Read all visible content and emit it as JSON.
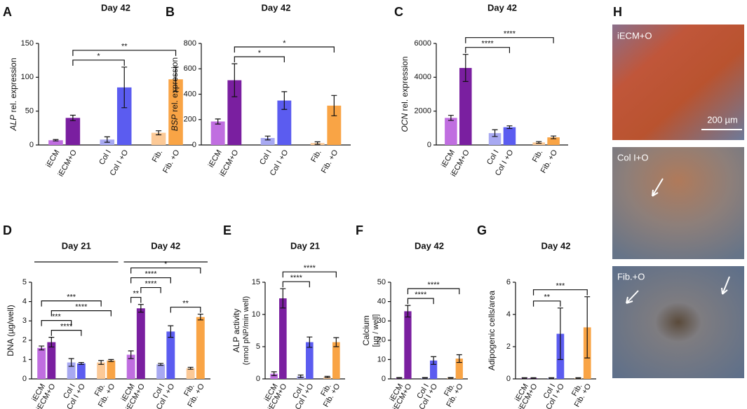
{
  "chart_data": [
    {
      "panel": "A",
      "type": "bar",
      "title": "Day 42",
      "ylabel_gene": "ALP",
      "ylabel": "rel. expression",
      "categories": [
        "iECM",
        "iECM+O",
        "Col I",
        "Col I +O",
        "Fib.",
        "Fib. +O"
      ],
      "colors": [
        "#c06ee0",
        "#7a1fa0",
        "#a8a9f2",
        "#5b5cf0",
        "#fcc996",
        "#f9a445"
      ],
      "values": [
        7,
        40,
        8,
        85,
        18,
        97
      ],
      "errors": [
        1,
        4,
        4,
        30,
        3,
        18
      ],
      "ylim": [
        0,
        150
      ],
      "yticks": [
        0,
        50,
        100,
        150
      ],
      "comparisons": [
        {
          "between": [
            "iECM+O",
            "Col I +O"
          ],
          "label": "*"
        },
        {
          "between": [
            "iECM+O",
            "Fib. +O"
          ],
          "label": "**"
        }
      ]
    },
    {
      "panel": "B",
      "type": "bar",
      "title": "Day 42",
      "ylabel_gene": "BSP",
      "ylabel": "rel. expression",
      "categories": [
        "iECM",
        "iECM+O",
        "Col I",
        "Col I +O",
        "Fib.",
        "Fib. +O"
      ],
      "colors": [
        "#c06ee0",
        "#7a1fa0",
        "#a8a9f2",
        "#5b5cf0",
        "#fcc996",
        "#f9a445"
      ],
      "values": [
        185,
        510,
        55,
        350,
        15,
        310
      ],
      "errors": [
        20,
        130,
        15,
        70,
        10,
        80
      ],
      "ylim": [
        0,
        800
      ],
      "yticks": [
        0,
        200,
        400,
        600,
        800
      ],
      "comparisons": [
        {
          "between": [
            "iECM+O",
            "Col I +O"
          ],
          "label": "*"
        },
        {
          "between": [
            "iECM+O",
            "Fib. +O"
          ],
          "label": "*"
        }
      ]
    },
    {
      "panel": "C",
      "type": "bar",
      "title": "Day 42",
      "ylabel_gene": "OCN",
      "ylabel": "rel. expression",
      "categories": [
        "iECM",
        "iECM+O",
        "Col I",
        "Col I +O",
        "Fib.",
        "Fib. +O"
      ],
      "colors": [
        "#c06ee0",
        "#7a1fa0",
        "#a8a9f2",
        "#5b5cf0",
        "#fcc996",
        "#f9a445"
      ],
      "values": [
        1600,
        4550,
        700,
        1050,
        150,
        450
      ],
      "errors": [
        150,
        800,
        200,
        80,
        50,
        80
      ],
      "ylim": [
        0,
        6000
      ],
      "yticks": [
        0,
        2000,
        4000,
        6000
      ],
      "comparisons": [
        {
          "between": [
            "iECM+O",
            "Col I +O"
          ],
          "label": "****"
        },
        {
          "between": [
            "iECM+O",
            "Fib. +O"
          ],
          "label": "****"
        }
      ]
    },
    {
      "panel": "D",
      "type": "grouped-bar",
      "ylabel": "DNA (µg/well)",
      "categories": [
        "iECM",
        "iECM+O",
        "Col I",
        "Col I +O",
        "Fib.",
        "Fib. +O"
      ],
      "colors": [
        "#c06ee0",
        "#7a1fa0",
        "#a8a9f2",
        "#5b5cf0",
        "#fcc996",
        "#f9a445"
      ],
      "groups": [
        {
          "title": "Day 21",
          "values": [
            1.6,
            1.9,
            0.85,
            0.8,
            0.85,
            0.95
          ],
          "errors": [
            0.1,
            0.25,
            0.2,
            0.05,
            0.1,
            0.05
          ],
          "comparisons": [
            {
              "between": [
                "iECM+O",
                "Col I +O"
              ],
              "label": "****"
            },
            {
              "between": [
                "iECM",
                "Col I"
              ],
              "label": "***"
            },
            {
              "between": [
                "iECM+O",
                "Fib. +O"
              ],
              "label": "****"
            },
            {
              "between": [
                "iECM",
                "Fib."
              ],
              "label": "***"
            }
          ]
        },
        {
          "title": "Day 42",
          "values": [
            1.25,
            3.65,
            0.75,
            2.45,
            0.55,
            3.2
          ],
          "errors": [
            0.2,
            0.2,
            0.05,
            0.3,
            0.05,
            0.15
          ],
          "comparisons": [
            {
              "between": [
                "Col I +O",
                "Fib. +O"
              ],
              "label": "**"
            },
            {
              "between": [
                "iECM",
                "iECM+O"
              ],
              "label": "**"
            },
            {
              "between": [
                "iECM+O",
                "Col I"
              ],
              "label": "****"
            },
            {
              "between": [
                "iECM",
                "Col I +O"
              ],
              "label": "****"
            },
            {
              "between": [
                "iECM",
                "Fib. +O"
              ],
              "label": "*"
            }
          ]
        }
      ],
      "ylim": [
        0,
        5
      ],
      "yticks": [
        0,
        1,
        2,
        3,
        4,
        5
      ]
    },
    {
      "panel": "E",
      "type": "bar",
      "title": "Day 21",
      "ylabel": "ALP activity",
      "ylabel_unit": "(nmol pNP/min well)",
      "categories": [
        "iECM",
        "iECM+O",
        "Col I",
        "Col I +O",
        "Fib.",
        "Fib. +O"
      ],
      "colors": [
        "#c06ee0",
        "#7a1fa0",
        "#a8a9f2",
        "#5b5cf0",
        "#fcc996",
        "#f9a445"
      ],
      "values": [
        0.8,
        12.5,
        0.4,
        5.7,
        0.3,
        5.7
      ],
      "errors": [
        0.3,
        1.5,
        0.2,
        0.8,
        0.1,
        0.7
      ],
      "ylim": [
        0,
        15
      ],
      "yticks": [
        0,
        5,
        10,
        15
      ],
      "comparisons": [
        {
          "between": [
            "iECM+O",
            "Col I +O"
          ],
          "label": "****"
        },
        {
          "between": [
            "iECM+O",
            "Fib. +O"
          ],
          "label": "****"
        }
      ]
    },
    {
      "panel": "F",
      "type": "bar",
      "title": "Day 42",
      "ylabel": "Calcium",
      "ylabel_unit": "[µg / well]",
      "categories": [
        "iECM",
        "iECM+O",
        "Col I",
        "Col I +O",
        "Fib.",
        "Fib. +O"
      ],
      "colors": [
        "#c06ee0",
        "#7a1fa0",
        "#a8a9f2",
        "#5b5cf0",
        "#fcc996",
        "#f9a445"
      ],
      "values": [
        0.5,
        35,
        0.5,
        9.5,
        0.5,
        10.5
      ],
      "errors": [
        0.2,
        3,
        0.2,
        2,
        0.2,
        2
      ],
      "ylim": [
        0,
        50
      ],
      "yticks": [
        0,
        10,
        20,
        30,
        40,
        50
      ],
      "comparisons": [
        {
          "between": [
            "iECM+O",
            "Col I +O"
          ],
          "label": "****"
        },
        {
          "between": [
            "iECM+O",
            "Fib. +O"
          ],
          "label": "****"
        }
      ]
    },
    {
      "panel": "G",
      "type": "bar",
      "title": "Day 42",
      "ylabel": "Adipogenic cells/area",
      "categories": [
        "iECM",
        "iECM+O",
        "Col I",
        "Col I +O",
        "Fib.",
        "Fib. +O"
      ],
      "colors": [
        "#c06ee0",
        "#7a1fa0",
        "#a8a9f2",
        "#5b5cf0",
        "#fcc996",
        "#f9a445"
      ],
      "values": [
        0.05,
        0.05,
        0.05,
        2.8,
        0.05,
        3.2
      ],
      "errors": [
        0.02,
        0.02,
        0.02,
        1.6,
        0.02,
        1.9
      ],
      "ylim": [
        0,
        6
      ],
      "yticks": [
        0,
        2,
        4,
        6
      ],
      "comparisons": [
        {
          "between": [
            "iECM+O",
            "Col I +O"
          ],
          "label": "**"
        },
        {
          "between": [
            "iECM+O",
            "Fib. +O"
          ],
          "label": "***"
        }
      ]
    }
  ],
  "images": {
    "panel": "H",
    "labels": [
      "iECM+O",
      "Col I+O",
      "Fib.+O"
    ],
    "scale_bar": "200 µm"
  }
}
